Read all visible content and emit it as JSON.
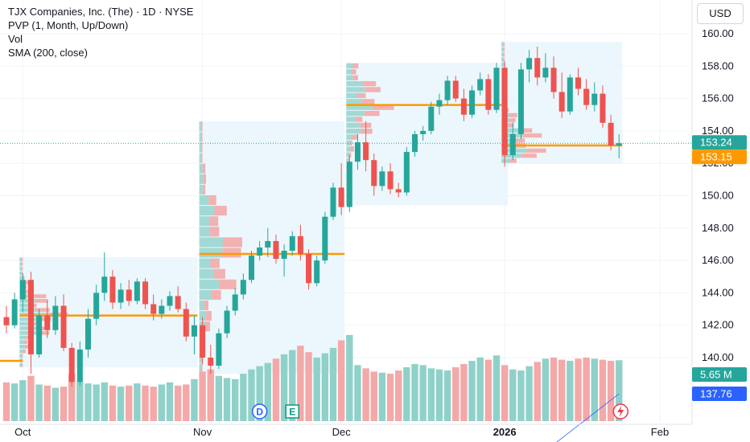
{
  "header": {
    "title": "TJX Companies, Inc. (The) · 1D · NYSE",
    "indicators": [
      "PVP (1, Month, Up/Down)",
      "Vol",
      "SMA (200, close)"
    ],
    "currency": "USD"
  },
  "colors": {
    "up": "#26a69a",
    "down": "#ef5350",
    "up_vol": "#8fd1c9",
    "down_vol": "#f4a8a8",
    "poc": "#ff9800",
    "profile_bg": "#e8f6fb",
    "grid": "#f0f3fa",
    "price_line": "#26a69a",
    "badge_price": "#26a69a",
    "badge_poc": "#ff9800",
    "badge_vol": "#26a69a",
    "badge_sma": "#2962ff"
  },
  "chart_data": {
    "type": "candlestick",
    "ylim": [
      138.0,
      160.5
    ],
    "y_ticks": [
      "140.00",
      "142.00",
      "144.00",
      "146.00",
      "148.00",
      "150.00",
      "152.00",
      "154.00",
      "156.00",
      "158.00",
      "160.00"
    ],
    "x_labels": [
      {
        "label": "Oct",
        "index": 2
      },
      {
        "label": "Nov",
        "index": 24
      },
      {
        "label": "Dec",
        "index": 41
      },
      {
        "label": "2026",
        "index": 61
      },
      {
        "label": "Feb",
        "index": 80
      }
    ],
    "event_markers": [
      {
        "label": "D",
        "index": 31
      },
      {
        "label": "E",
        "index": 35
      }
    ],
    "current_price": "153.24",
    "poc_value": "153.15",
    "volume_label": "5.65 M",
    "sma_value": "137.76",
    "candles": [
      [
        142.5,
        143.2,
        141.5,
        142.0
      ],
      [
        142.0,
        144.0,
        141.8,
        143.6
      ],
      [
        143.6,
        145.2,
        142.8,
        144.8
      ],
      [
        144.8,
        145.3,
        139.0,
        140.2
      ],
      [
        140.2,
        143.0,
        140.0,
        142.6
      ],
      [
        142.6,
        143.5,
        141.2,
        141.7
      ],
      [
        141.7,
        143.8,
        141.4,
        143.2
      ],
      [
        143.2,
        143.9,
        140.4,
        140.6
      ],
      [
        140.6,
        140.9,
        138.2,
        138.5
      ],
      [
        138.5,
        141.0,
        138.3,
        140.5
      ],
      [
        140.5,
        143.0,
        140.0,
        142.4
      ],
      [
        142.4,
        144.5,
        142.0,
        144.0
      ],
      [
        144.0,
        146.5,
        143.5,
        145.0
      ],
      [
        145.0,
        145.4,
        143.0,
        143.4
      ],
      [
        143.4,
        144.6,
        143.0,
        144.2
      ],
      [
        144.2,
        144.8,
        143.2,
        143.5
      ],
      [
        143.5,
        144.9,
        143.3,
        144.7
      ],
      [
        144.7,
        144.9,
        143.0,
        143.3
      ],
      [
        143.3,
        143.9,
        142.3,
        142.7
      ],
      [
        142.7,
        143.6,
        142.4,
        143.2
      ],
      [
        143.2,
        144.1,
        142.9,
        143.8
      ],
      [
        143.8,
        144.4,
        142.8,
        143.0
      ],
      [
        143.0,
        143.4,
        141.0,
        141.3
      ],
      [
        141.3,
        142.6,
        140.2,
        142.0
      ],
      [
        142.0,
        142.5,
        139.6,
        140.0
      ],
      [
        140.0,
        140.8,
        139.0,
        139.5
      ],
      [
        139.5,
        141.8,
        139.3,
        141.5
      ],
      [
        141.5,
        143.2,
        141.2,
        142.9
      ],
      [
        142.9,
        144.3,
        142.6,
        143.9
      ],
      [
        143.9,
        145.2,
        143.6,
        144.8
      ],
      [
        144.8,
        146.6,
        144.6,
        146.3
      ],
      [
        146.3,
        147.2,
        146.0,
        146.8
      ],
      [
        146.8,
        148.0,
        146.2,
        147.2
      ],
      [
        147.2,
        147.6,
        145.8,
        146.1
      ],
      [
        146.1,
        147.0,
        145.0,
        146.6
      ],
      [
        146.6,
        147.8,
        146.3,
        147.5
      ],
      [
        147.5,
        148.2,
        146.0,
        146.4
      ],
      [
        146.4,
        146.7,
        144.2,
        144.6
      ],
      [
        144.6,
        146.3,
        144.4,
        146.0
      ],
      [
        146.0,
        149.0,
        145.8,
        148.7
      ],
      [
        148.7,
        150.8,
        148.5,
        150.5
      ],
      [
        150.5,
        152.0,
        148.8,
        149.3
      ],
      [
        149.3,
        152.5,
        149.0,
        152.1
      ],
      [
        152.1,
        153.8,
        151.6,
        153.3
      ],
      [
        153.3,
        154.6,
        151.5,
        152.2
      ],
      [
        152.2,
        152.6,
        150.0,
        150.6
      ],
      [
        150.6,
        151.8,
        150.3,
        151.5
      ],
      [
        151.5,
        152.0,
        150.1,
        150.4
      ],
      [
        150.4,
        150.8,
        149.9,
        150.2
      ],
      [
        150.2,
        153.0,
        150.0,
        152.7
      ],
      [
        152.7,
        154.0,
        152.4,
        153.8
      ],
      [
        153.8,
        154.3,
        153.4,
        154.0
      ],
      [
        154.0,
        155.8,
        153.8,
        155.5
      ],
      [
        155.5,
        156.3,
        155.0,
        155.9
      ],
      [
        155.9,
        157.4,
        155.6,
        157.1
      ],
      [
        157.1,
        157.4,
        155.8,
        156.0
      ],
      [
        156.0,
        156.6,
        154.6,
        155.0
      ],
      [
        155.0,
        156.8,
        154.8,
        156.5
      ],
      [
        156.5,
        157.6,
        156.2,
        157.2
      ],
      [
        157.2,
        157.5,
        155.0,
        155.3
      ],
      [
        155.3,
        158.2,
        155.1,
        157.9
      ],
      [
        157.9,
        158.3,
        151.8,
        152.5
      ],
      [
        152.5,
        154.5,
        152.2,
        153.8
      ],
      [
        153.8,
        158.2,
        153.5,
        157.8
      ],
      [
        157.8,
        159.0,
        157.0,
        158.5
      ],
      [
        158.5,
        159.2,
        156.8,
        157.3
      ],
      [
        157.3,
        158.8,
        157.0,
        157.9
      ],
      [
        157.9,
        158.6,
        156.0,
        156.4
      ],
      [
        156.4,
        157.6,
        154.8,
        155.2
      ],
      [
        155.2,
        157.5,
        155.0,
        157.3
      ],
      [
        157.3,
        157.9,
        156.2,
        156.6
      ],
      [
        156.6,
        157.2,
        155.3,
        155.6
      ],
      [
        155.6,
        157.0,
        155.2,
        156.3
      ],
      [
        156.3,
        156.8,
        154.2,
        154.5
      ],
      [
        154.5,
        155.0,
        152.8,
        153.1
      ],
      [
        153.1,
        153.8,
        152.3,
        153.24
      ]
    ],
    "volume_index_samples": "all candles",
    "volumes": [
      3.6,
      3.5,
      3.8,
      4.2,
      3.4,
      3.3,
      3.1,
      3.2,
      4.4,
      3.7,
      3.5,
      3.4,
      3.6,
      3.3,
      3.2,
      3.3,
      3.5,
      3.3,
      3.2,
      3.4,
      3.6,
      3.3,
      3.4,
      3.9,
      4.6,
      4.8,
      4.2,
      4.0,
      3.9,
      4.4,
      4.8,
      5.1,
      5.4,
      5.8,
      6.2,
      6.6,
      7.0,
      6.4,
      5.9,
      6.3,
      6.8,
      7.5,
      8.0,
      5.2,
      4.9,
      4.6,
      4.5,
      4.4,
      4.7,
      5.0,
      5.3,
      5.2,
      4.9,
      4.8,
      4.7,
      5.0,
      5.3,
      5.6,
      5.9,
      5.7,
      6.1,
      5.2,
      4.8,
      4.7,
      5.1,
      5.5,
      5.8,
      5.9,
      5.7,
      5.6,
      5.8,
      5.9,
      5.8,
      5.7,
      5.6,
      5.65
    ],
    "volume_ylim": [
      0,
      10
    ],
    "profiles": [
      {
        "start": 2,
        "end": 23,
        "top": 146.2,
        "bottom": 139.4,
        "poc": 142.6
      },
      {
        "start": 24,
        "end": 41,
        "top": 154.6,
        "bottom": 139.0,
        "poc": 146.4
      },
      {
        "start": 42,
        "end": 61,
        "top": 158.2,
        "bottom": 149.4,
        "poc": 155.6
      },
      {
        "start": 61,
        "end": 75,
        "top": 159.5,
        "bottom": 152.0,
        "poc": 153.1
      }
    ],
    "sma_start": 132.5,
    "sma_end": 137.76
  }
}
